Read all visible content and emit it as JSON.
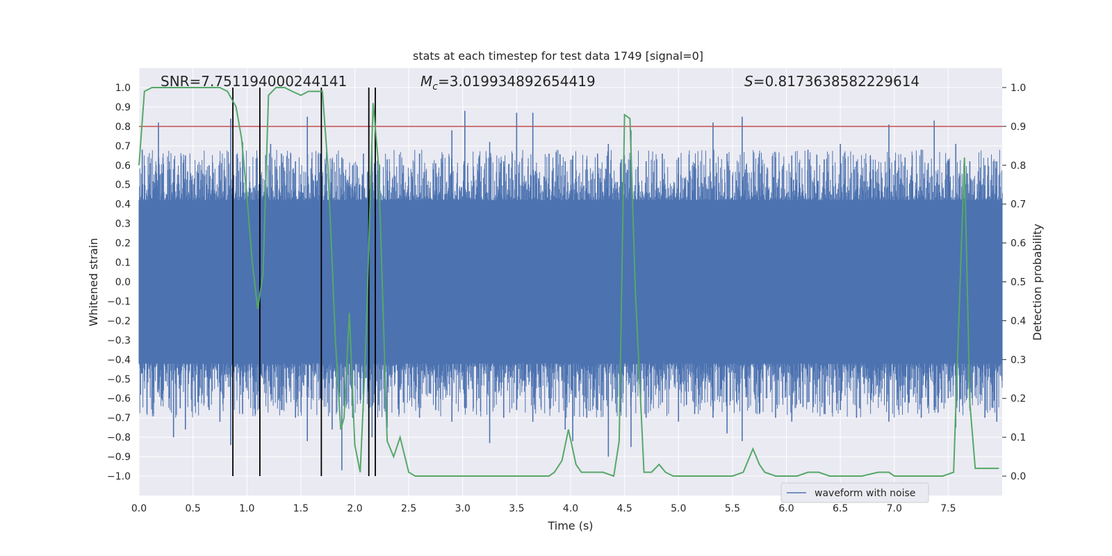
{
  "chart_data": {
    "type": "line",
    "title": "stats at each timestep for test data 1749 [signal=0]",
    "xlabel": "Time (s)",
    "ylabel": "Whitened strain",
    "y2label": "Detection probability",
    "xlim": [
      0.0,
      8.0
    ],
    "ylim": [
      -1.1,
      1.1
    ],
    "y2lim": [
      -0.05,
      1.05
    ],
    "xticks": [
      "0.0",
      "0.5",
      "1.0",
      "1.5",
      "2.0",
      "2.5",
      "3.0",
      "3.5",
      "4.0",
      "4.5",
      "5.0",
      "5.5",
      "6.0",
      "6.5",
      "7.0",
      "7.5"
    ],
    "yticks": [
      "1.0",
      "0.9",
      "0.8",
      "0.7",
      "0.6",
      "0.5",
      "0.4",
      "0.3",
      "0.2",
      "0.1",
      "0.0",
      "−0.1",
      "−0.2",
      "−0.3",
      "−0.4",
      "−0.5",
      "−0.6",
      "−0.7",
      "−0.8",
      "−0.9",
      "−1.0"
    ],
    "y2ticks": [
      "1.0",
      "0.9",
      "0.8",
      "0.7",
      "0.6",
      "0.5",
      "0.4",
      "0.3",
      "0.2",
      "0.1",
      "0.0"
    ],
    "grid": true,
    "legend_position": "lower-right",
    "annotations": {
      "snr": "SNR=7.751194000244141",
      "mc_symbol": "M",
      "mc_sub": "c",
      "mc_value": "=3.019934892654419",
      "s_symbol": "S",
      "s_value": "=0.8173638582229614"
    },
    "threshold": {
      "value": 0.8,
      "axis": "left",
      "color": "#c44e52"
    },
    "vertical_lines": [
      0.87,
      1.12,
      1.69,
      2.13,
      2.19
    ],
    "series": [
      {
        "name": "waveform with noise",
        "kind": "noise-band",
        "color": "#4c72b0",
        "dense_band": [
          -0.4,
          0.4
        ],
        "peaks": [
          [
            0.03,
            0.68,
            -0.46
          ],
          [
            0.18,
            0.82,
            -0.55
          ],
          [
            0.28,
            0.62,
            -0.6
          ],
          [
            0.32,
            0.58,
            -0.8
          ],
          [
            0.43,
            0.65,
            -0.76
          ],
          [
            0.55,
            0.56,
            -0.62
          ],
          [
            0.65,
            0.6,
            -0.66
          ],
          [
            0.75,
            0.62,
            -0.72
          ],
          [
            0.85,
            0.84,
            -0.84
          ],
          [
            0.96,
            0.72,
            -0.68
          ],
          [
            1.12,
            0.62,
            -0.98
          ],
          [
            1.22,
            0.71,
            -0.58
          ],
          [
            1.32,
            0.66,
            -0.66
          ],
          [
            1.45,
            0.62,
            -0.7
          ],
          [
            1.56,
            0.85,
            -0.82
          ],
          [
            1.68,
            0.66,
            -0.6
          ],
          [
            1.79,
            0.63,
            -0.76
          ],
          [
            1.88,
            0.64,
            -0.97
          ],
          [
            1.98,
            0.6,
            -0.7
          ],
          [
            2.08,
            0.66,
            -0.62
          ],
          [
            2.16,
            0.7,
            -0.8
          ],
          [
            2.3,
            0.63,
            -0.75
          ],
          [
            2.45,
            0.6,
            -0.62
          ],
          [
            2.6,
            0.66,
            -0.7
          ],
          [
            2.75,
            0.61,
            -0.66
          ],
          [
            2.9,
            0.78,
            -0.72
          ],
          [
            3.02,
            0.88,
            -0.65
          ],
          [
            3.15,
            0.64,
            -0.6
          ],
          [
            3.25,
            0.72,
            -0.83
          ],
          [
            3.38,
            0.62,
            -0.7
          ],
          [
            3.5,
            0.87,
            -0.66
          ],
          [
            3.65,
            0.87,
            -0.72
          ],
          [
            3.8,
            0.66,
            -0.6
          ],
          [
            3.95,
            0.62,
            -0.76
          ],
          [
            4.02,
            0.65,
            -0.82
          ],
          [
            4.15,
            0.63,
            -0.7
          ],
          [
            4.25,
            0.66,
            -0.66
          ],
          [
            4.35,
            0.71,
            -0.9
          ],
          [
            4.47,
            0.63,
            -0.6
          ],
          [
            4.56,
            0.78,
            -0.85
          ],
          [
            4.7,
            0.62,
            -0.7
          ],
          [
            4.85,
            0.66,
            -0.62
          ],
          [
            5.0,
            0.64,
            -0.72
          ],
          [
            5.15,
            0.61,
            -0.68
          ],
          [
            5.32,
            0.82,
            -0.7
          ],
          [
            5.45,
            0.66,
            -0.78
          ],
          [
            5.59,
            0.85,
            -0.82
          ],
          [
            5.75,
            0.66,
            -0.68
          ],
          [
            5.9,
            0.64,
            -0.7
          ],
          [
            6.05,
            0.65,
            -0.72
          ],
          [
            6.2,
            0.68,
            -0.62
          ],
          [
            6.35,
            0.63,
            -0.68
          ],
          [
            6.5,
            0.71,
            -0.66
          ],
          [
            6.65,
            0.62,
            -0.7
          ],
          [
            6.78,
            0.63,
            -0.6
          ],
          [
            6.95,
            0.81,
            -0.72
          ],
          [
            7.1,
            0.64,
            -0.62
          ],
          [
            7.25,
            0.68,
            -0.7
          ],
          [
            7.37,
            0.83,
            -0.66
          ],
          [
            7.5,
            0.63,
            -0.6
          ],
          [
            7.57,
            0.71,
            -0.75
          ],
          [
            7.7,
            0.62,
            -0.65
          ],
          [
            7.84,
            0.6,
            -0.7
          ],
          [
            7.95,
            0.62,
            -0.72
          ]
        ]
      },
      {
        "kind": "probability",
        "axis": "right",
        "color": "#55a868",
        "x": [
          0.0,
          0.05,
          0.12,
          0.2,
          0.3,
          0.45,
          0.6,
          0.75,
          0.82,
          0.9,
          0.95,
          1.0,
          1.05,
          1.1,
          1.15,
          1.2,
          1.27,
          1.35,
          1.42,
          1.5,
          1.57,
          1.63,
          1.7,
          1.75,
          1.79,
          1.82,
          1.87,
          1.9,
          1.95,
          2.0,
          2.05,
          2.1,
          2.17,
          2.22,
          2.3,
          2.36,
          2.42,
          2.5,
          2.56,
          2.65,
          2.8,
          3.0,
          3.2,
          3.4,
          3.5,
          3.6,
          3.7,
          3.8,
          3.85,
          3.92,
          3.98,
          4.05,
          4.1,
          4.2,
          4.3,
          4.4,
          4.45,
          4.5,
          4.55,
          4.6,
          4.68,
          4.75,
          4.82,
          4.88,
          4.95,
          5.1,
          5.25,
          5.4,
          5.5,
          5.6,
          5.63,
          5.69,
          5.75,
          5.8,
          5.9,
          6.1,
          6.2,
          6.3,
          6.4,
          6.5,
          6.6,
          6.7,
          6.85,
          6.95,
          7.0,
          7.1,
          7.2,
          7.3,
          7.45,
          7.55,
          7.65,
          7.7,
          7.75,
          7.82,
          7.9,
          7.97
        ],
        "y": [
          0.8,
          0.99,
          1.0,
          1.0,
          1.0,
          1.0,
          1.0,
          1.0,
          0.99,
          0.95,
          0.87,
          0.72,
          0.55,
          0.43,
          0.52,
          0.98,
          1.0,
          1.0,
          0.99,
          0.98,
          0.99,
          0.99,
          0.99,
          0.8,
          0.55,
          0.35,
          0.12,
          0.15,
          0.42,
          0.08,
          0.01,
          0.32,
          0.96,
          0.8,
          0.09,
          0.05,
          0.1,
          0.01,
          0.0,
          0.0,
          0.0,
          0.0,
          0.0,
          0.0,
          0.0,
          0.0,
          0.0,
          0.0,
          0.01,
          0.04,
          0.12,
          0.03,
          0.01,
          0.01,
          0.01,
          0.0,
          0.09,
          0.93,
          0.92,
          0.48,
          0.01,
          0.01,
          0.03,
          0.01,
          0.0,
          0.0,
          0.0,
          0.0,
          0.0,
          0.01,
          0.03,
          0.07,
          0.03,
          0.01,
          0.0,
          0.0,
          0.01,
          0.01,
          0.0,
          0.0,
          0.0,
          0.0,
          0.01,
          0.01,
          0.0,
          0.0,
          0.0,
          0.0,
          0.0,
          0.01,
          0.82,
          0.19,
          0.02,
          0.02,
          0.02,
          0.02
        ]
      }
    ]
  }
}
